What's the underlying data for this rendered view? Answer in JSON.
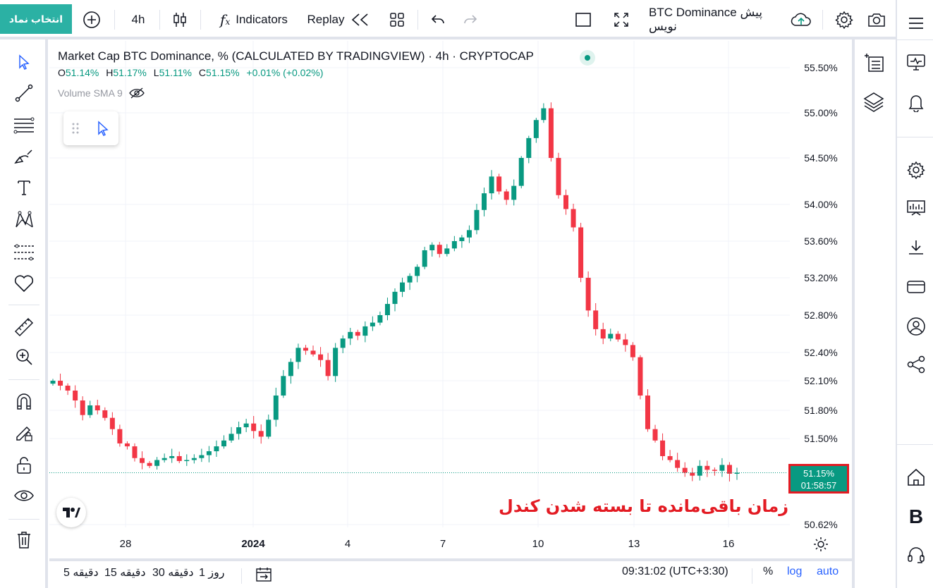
{
  "topbar": {
    "symbol_select": "انتخاب نماد",
    "interval": "4h",
    "indicators": "Indicators",
    "replay": "Replay",
    "layout_name": "BTC Dominance پیش نویس"
  },
  "legend": {
    "title": "Market Cap BTC Dominance, % (CALCULATED BY TRADINGVIEW) · 4h · CRYPTOCAP",
    "o_label": "O",
    "o_value": "51.14%",
    "h_label": "H",
    "h_value": "51.17%",
    "l_label": "L",
    "l_value": "51.11%",
    "c_label": "C",
    "c_value": "51.15%",
    "change": "+0.01% (+0.02%)",
    "volume_indicator": "Volume SMA 9"
  },
  "chart_data": {
    "type": "candlestick",
    "title": "Market Cap BTC Dominance, % (CALCULATED BY TRADINGVIEW) · 4h · CRYPTOCAP",
    "y_ticks": [
      "55.50%",
      "55.00%",
      "54.50%",
      "54.00%",
      "53.60%",
      "53.20%",
      "52.80%",
      "52.40%",
      "52.10%",
      "51.80%",
      "51.50%",
      "50.62%"
    ],
    "x_ticks": [
      "28",
      "2024",
      "4",
      "7",
      "10",
      "13",
      "16"
    ],
    "last_price": "51.15%",
    "countdown": "01:58:57",
    "colors": {
      "up": "#089981",
      "down": "#f23645"
    },
    "closes": [
      52.1,
      52.05,
      52.0,
      51.9,
      51.75,
      51.85,
      51.8,
      51.72,
      51.6,
      51.45,
      51.42,
      51.3,
      51.25,
      51.22,
      51.28,
      51.3,
      51.32,
      51.27,
      51.28,
      51.3,
      51.33,
      51.37,
      51.42,
      51.48,
      51.55,
      51.62,
      51.66,
      51.58,
      51.52,
      51.7,
      51.95,
      52.15,
      52.3,
      52.45,
      52.42,
      52.38,
      52.32,
      52.15,
      52.45,
      52.55,
      52.62,
      52.58,
      52.68,
      52.72,
      52.8,
      52.92,
      53.05,
      53.15,
      53.22,
      53.32,
      53.5,
      53.56,
      53.46,
      53.52,
      53.6,
      53.64,
      53.72,
      53.94,
      54.12,
      54.3,
      54.14,
      54.05,
      54.2,
      54.5,
      54.72,
      54.92,
      55.05,
      54.5,
      54.1,
      53.95,
      53.75,
      53.2,
      52.85,
      52.65,
      52.55,
      52.6,
      52.54,
      52.48,
      52.35,
      51.95,
      51.6,
      51.48,
      51.32,
      51.28,
      51.2,
      51.15,
      51.12,
      51.22,
      51.18,
      51.17,
      51.23,
      51.14,
      51.15
    ]
  },
  "annotation": "زمان باقی‌مانده تا بسته شدن کندل",
  "bottombar": {
    "range_5d": "5 دقیقه",
    "range_15": "15 دقیقه",
    "range_30": "30 دقیقه",
    "range_1d": "1 روز",
    "clock": "09:31:02 (UTC+3:30)",
    "percent": "%",
    "log": "log",
    "auto": "auto"
  }
}
